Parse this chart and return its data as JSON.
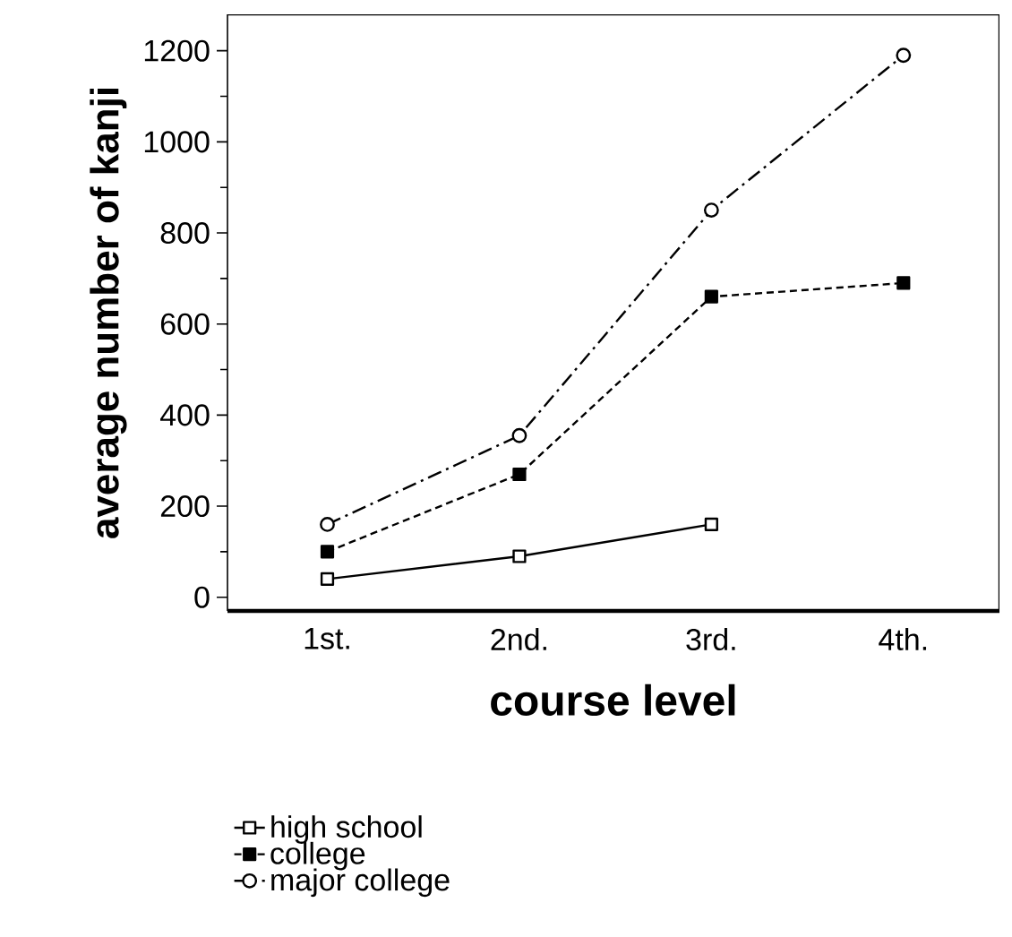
{
  "chart_data": {
    "type": "line",
    "xlabel": "course level",
    "ylabel": "average number of kanji",
    "categories": [
      "1st.",
      "2nd.",
      "3rd.",
      "4th."
    ],
    "series": [
      {
        "name": "high school",
        "color": "#000000",
        "values": [
          40,
          90,
          160,
          null
        ],
        "marker": "square",
        "colors": [
          "#ffffff",
          "#ffffff",
          "#ffffff",
          "#ffffff"
        ],
        "line_style": "solid"
      },
      {
        "name": "college",
        "color": "#000000",
        "values": [
          100,
          270,
          660,
          690
        ],
        "marker": "square",
        "line_style": "dashed"
      },
      {
        "name": "major college",
        "color": "#000000",
        "values": [
          160,
          355,
          850,
          1190
        ],
        "marker": "circle",
        "colors": [
          "#ffffff",
          "#ffffff",
          "#ffffff",
          "#ffffff"
        ],
        "line_style": "dashdot"
      }
    ],
    "ylim": [
      -30,
      1280
    ],
    "yticks": [
      0,
      200,
      400,
      600,
      800,
      1000,
      1200
    ],
    "grid": false,
    "legend": "bottom"
  }
}
